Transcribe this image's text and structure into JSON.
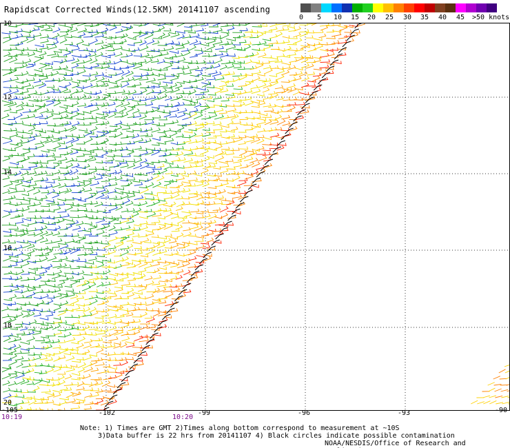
{
  "title": "Rapidscat Corrected Winds(12.5KM) 20141107 ascending",
  "legend": {
    "labels": [
      "0",
      "5",
      "10",
      "15",
      "20",
      "25",
      "30",
      "35",
      "40",
      "45",
      ">50 knots"
    ],
    "colors": [
      "#505050",
      "#808080",
      "#00d8ff",
      "#0070ff",
      "#1030b0",
      "#00b000",
      "#20d020",
      "#ffff00",
      "#ffc000",
      "#ff8000",
      "#ff4000",
      "#ff0000",
      "#c00000",
      "#804020",
      "#5a3010",
      "#ff00ff",
      "#b000d0",
      "#7000b0",
      "#400080"
    ]
  },
  "lat_labels": [
    "10",
    "12",
    "14",
    "16",
    "18",
    "20"
  ],
  "lon_labels": [
    "-105",
    "-102",
    "-99",
    "-96",
    "-93",
    "-90"
  ],
  "times": [
    "10:19",
    "10:20"
  ],
  "notes": {
    "line1": "Note: 1) Times are GMT 2)Times along bottom correspond to measurement at ~10S",
    "line2": "3)Data buffer is 22 hrs from 20141107 4) Black circles indicate possible contamination",
    "line3": "NOAA/NESDIS/Office of Research and Applications"
  }
}
